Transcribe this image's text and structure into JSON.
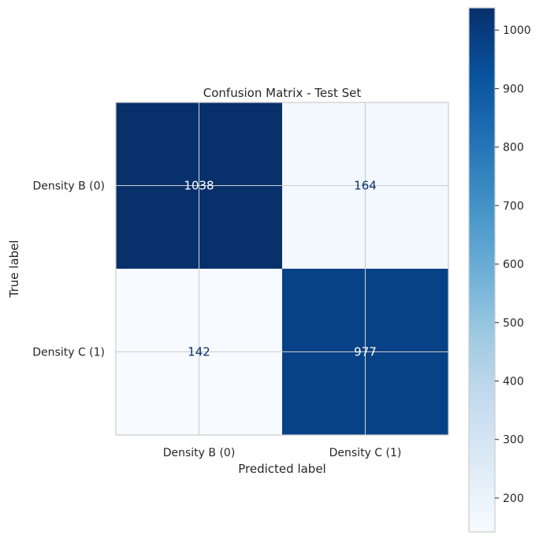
{
  "chart_data": {
    "type": "heatmap",
    "title": "Confusion Matrix - Test Set",
    "xlabel": "Predicted label",
    "ylabel": "True label",
    "x_categories": [
      "Density B (0)",
      "Density C (1)"
    ],
    "y_categories": [
      "Density B (0)",
      "Density C (1)"
    ],
    "values": [
      [
        1038,
        164
      ],
      [
        142,
        977
      ]
    ],
    "colormap": "Blues",
    "color_low": "#f7fbff",
    "color_high": "#08306b",
    "value_text_light": "#ffffff",
    "value_text_dark": "#08306b",
    "colorbar": {
      "ticks": [
        200,
        300,
        400,
        500,
        600,
        700,
        800,
        900,
        1000
      ],
      "range": [
        142,
        1038
      ]
    },
    "grid": true
  }
}
